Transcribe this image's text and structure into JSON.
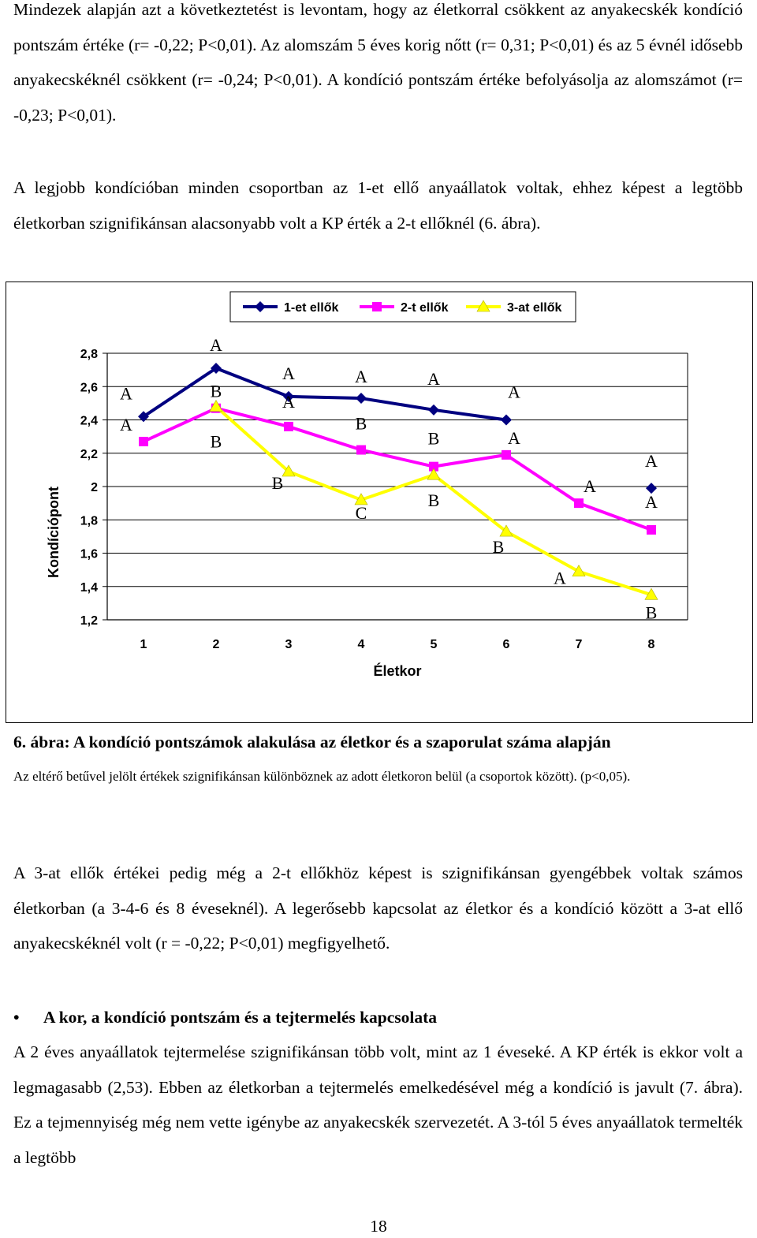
{
  "paragraphs": {
    "p1": "Mindezek alapján azt a következtetést is levontam, hogy az életkorral csökkent az anyakecskék kondíció pontszám értéke (r= -0,22; P<0,01). Az alomszám 5 éves korig nőtt (r= 0,31; P<0,01) és az 5 évnél idősebb anyakecskéknél csökkent (r= -0,24; P<0,01). A kondíció pontszám értéke befolyásolja az alomszámot (r= -0,23; P<0,01).",
    "p2": "A legjobb kondícióban minden csoportban az 1-et ellő anyaállatok voltak, ehhez képest a legtöbb életkorban szignifikánsan alacsonyabb volt a KP érték a 2-t ellőknél (6. ábra).",
    "p3": "A 3-at ellők értékei pedig még a 2-t ellőkhöz képest is szignifikánsan gyengébbek voltak számos életkorban (a 3-4-6 és 8 éveseknél). A legerősebb kapcsolat az életkor és a kondíció között a 3-at ellő anyakecskéknél volt (r = -0,22; P<0,01) megfigyelhető.",
    "p4": "A 2 éves anyaállatok tejtermelése szignifikánsan több volt, mint az 1 éveseké. A KP érték is ekkor volt a legmagasabb (2,53). Ebben az életkorban a tejtermelés emelkedésével még a kondíció is javult (7. ábra). Ez a tejmennyiség még nem vette igénybe az anyakecskék szervezetét. A 3-tól 5 éves anyaállatok termelték a legtöbb"
  },
  "caption": {
    "title": "6. ábra: A kondíció pontszámok alakulása az életkor és a szaporulat száma alapján",
    "note": "Az eltérő betűvel jelölt értékek szignifikánsan különböznek az adott életkoron belül (a csoportok között). (p<0,05)."
  },
  "section": {
    "bullet": "•",
    "heading": "A kor, a kondíció pontszám és a tejtermelés kapcsolata"
  },
  "page_number": "18",
  "chart_data": {
    "type": "line",
    "title": "",
    "xlabel": "Életkor",
    "ylabel": "Kondíciópont",
    "x": [
      1,
      2,
      3,
      4,
      5,
      6,
      7,
      8
    ],
    "yticks": [
      "1,2",
      "1,4",
      "1,6",
      "1,8",
      "2",
      "2,2",
      "2,4",
      "2,6",
      "2,8"
    ],
    "ylim": [
      1.2,
      2.8
    ],
    "grid": "horizontal",
    "legend_position": "top",
    "series": [
      {
        "name": "1-et ellők",
        "color": "#000080",
        "marker": "diamond",
        "values": [
          2.42,
          2.71,
          2.54,
          2.53,
          2.46,
          2.4,
          null,
          1.99
        ],
        "letters": [
          "A",
          "A",
          "A",
          "A",
          "A",
          "A",
          null,
          "A"
        ]
      },
      {
        "name": "2-t ellők",
        "color": "#ff00ff",
        "marker": "square",
        "values": [
          2.27,
          2.47,
          2.36,
          2.22,
          2.12,
          2.19,
          1.9,
          1.74
        ],
        "letters": [
          "A",
          "B",
          "A",
          "B",
          "B",
          "A",
          "A",
          "A"
        ]
      },
      {
        "name": "3-at ellők",
        "color": "#ffff00",
        "marker": "triangle",
        "values": [
          null,
          2.48,
          2.09,
          1.92,
          2.07,
          1.73,
          1.49,
          1.35
        ],
        "letters": [
          null,
          "B",
          "B",
          "C",
          "B",
          "B",
          "A",
          "B"
        ]
      }
    ]
  }
}
